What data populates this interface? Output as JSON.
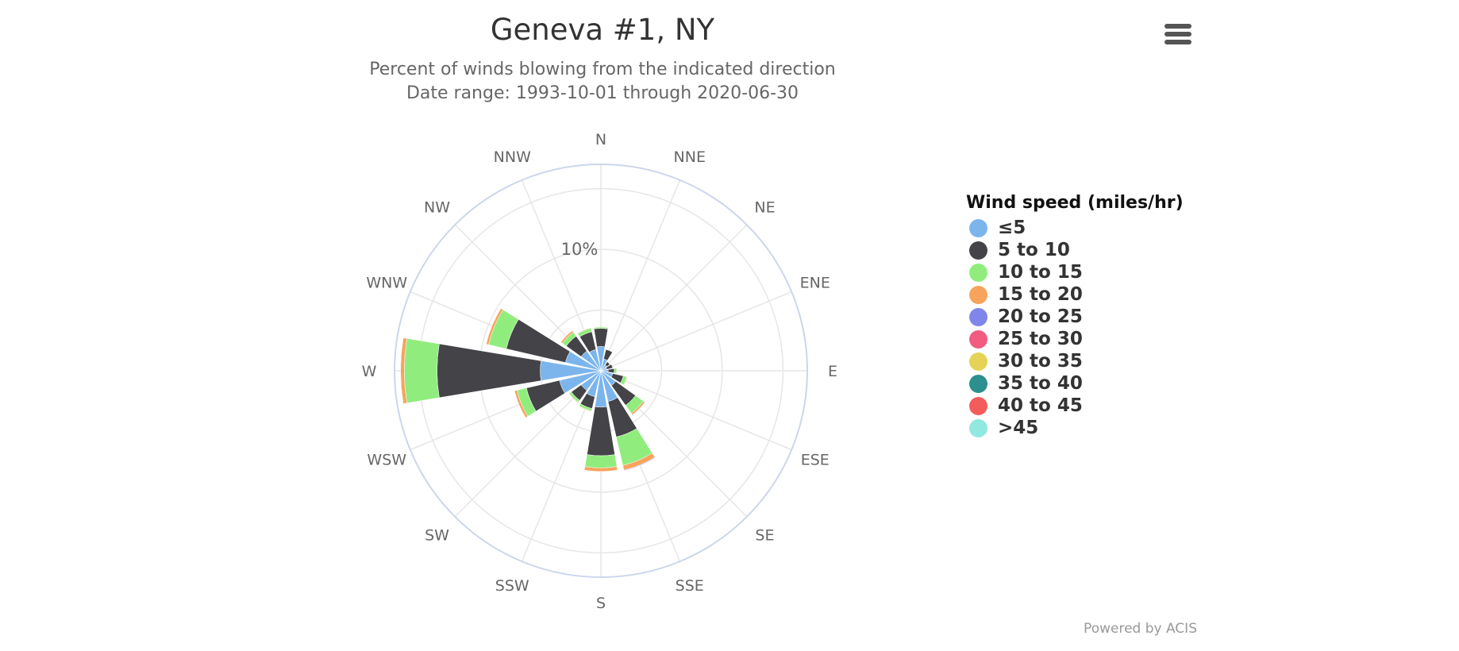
{
  "header": {
    "title": "Geneva #1, NY",
    "subtitle_line1": "Percent of winds blowing from the indicated direction",
    "subtitle_line2": "Date range: 1993-10-01 through 2020-06-30",
    "menu_icon": "hamburger-menu-icon"
  },
  "credits": "Powered by ACIS",
  "chart_data": {
    "type": "windrose",
    "title": "Geneva #1, NY",
    "subtitle": "Percent of winds blowing from the indicated direction",
    "date_range": "Date range: 1993-10-01 through 2020-06-30",
    "directions": [
      "N",
      "NNE",
      "NE",
      "ENE",
      "E",
      "ESE",
      "SE",
      "SSE",
      "S",
      "SSW",
      "SW",
      "WSW",
      "W",
      "WNW",
      "NW",
      "NNW"
    ],
    "radial_axis": {
      "max": 17,
      "gridlines": [
        5,
        10,
        15
      ],
      "label": "10%",
      "grid": true
    },
    "legend": {
      "title": "Wind speed (miles/hr)",
      "placement": "right"
    },
    "series": [
      {
        "name": "≤5",
        "color": "#7cb5ec",
        "values": [
          2.0,
          1.0,
          0.6,
          0.5,
          0.6,
          1.0,
          1.5,
          2.6,
          3.0,
          2.2,
          2.0,
          3.5,
          5.0,
          3.0,
          2.0,
          1.8
        ]
      },
      {
        "name": "5 to 10",
        "color": "#434348",
        "values": [
          1.5,
          0.8,
          0.3,
          0.5,
          0.5,
          0.9,
          2.0,
          3.0,
          4.0,
          1.0,
          1.0,
          2.8,
          8.5,
          5.0,
          1.5,
          1.5
        ]
      },
      {
        "name": "10 to 15",
        "color": "#90ed7d",
        "values": [
          0.1,
          0.0,
          0.0,
          0.0,
          0.2,
          0.3,
          0.8,
          2.4,
          1.0,
          0.2,
          0.2,
          0.8,
          2.7,
          1.5,
          0.4,
          0.3
        ]
      },
      {
        "name": "15 to 20",
        "color": "#f7a35c",
        "values": [
          0.0,
          0.0,
          0.0,
          0.0,
          0.0,
          0.05,
          0.15,
          0.4,
          0.3,
          0.05,
          0.05,
          0.2,
          0.3,
          0.2,
          0.15,
          0.05
        ]
      },
      {
        "name": "20 to 25",
        "color": "#8085e9",
        "values": [
          0,
          0,
          0,
          0,
          0,
          0,
          0,
          0.05,
          0.02,
          0,
          0,
          0,
          0,
          0,
          0,
          0
        ]
      },
      {
        "name": "25 to 30",
        "color": "#f15c80",
        "values": [
          0,
          0,
          0,
          0,
          0,
          0,
          0,
          0,
          0,
          0,
          0,
          0,
          0,
          0,
          0,
          0
        ]
      },
      {
        "name": "30 to 35",
        "color": "#e4d354",
        "values": [
          0,
          0,
          0,
          0,
          0,
          0,
          0,
          0,
          0,
          0,
          0,
          0,
          0,
          0,
          0,
          0
        ]
      },
      {
        "name": "35 to 40",
        "color": "#2b908f",
        "values": [
          0,
          0,
          0,
          0,
          0,
          0,
          0,
          0,
          0,
          0,
          0,
          0,
          0,
          0,
          0,
          0
        ]
      },
      {
        "name": "40 to 45",
        "color": "#f45b5b",
        "values": [
          0,
          0,
          0,
          0,
          0,
          0,
          0,
          0,
          0,
          0,
          0,
          0,
          0,
          0,
          0,
          0
        ]
      },
      {
        "name": ">45",
        "color": "#91e8e1",
        "values": [
          0,
          0,
          0,
          0,
          0,
          0,
          0,
          0,
          0,
          0,
          0,
          0,
          0,
          0,
          0,
          0
        ]
      }
    ]
  }
}
